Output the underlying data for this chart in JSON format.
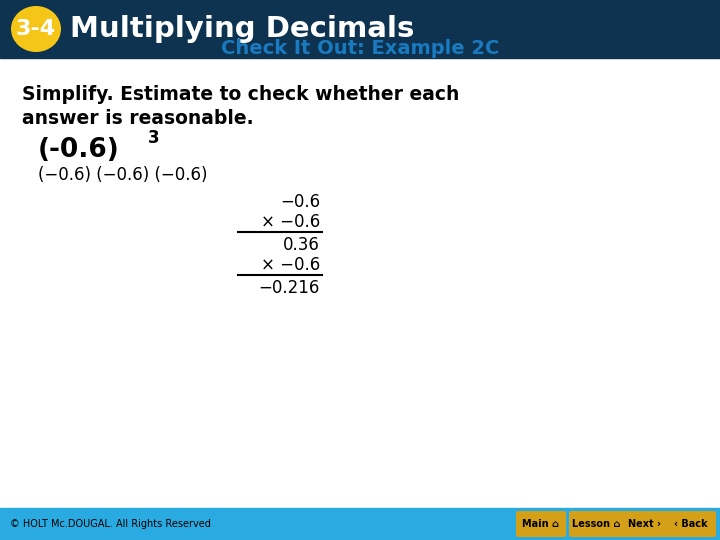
{
  "header_bg_color": "#0d3350",
  "header_text_color": "#ffffff",
  "header_badge_bg": "#f5c518",
  "header_badge_text": "3-4",
  "header_title": "Multiplying Decimals",
  "subtitle": "Check It Out: Example 2C",
  "subtitle_color": "#1a7abf",
  "body_bg_color": "#ffffff",
  "instruction_line1": "Simplify. Estimate to check whether each",
  "instruction_line2": "answer is reasonable.",
  "problem_base": "(-0.6)",
  "problem_exp": "3",
  "expand_line": "(−0.6) (−0.6) (−0.6)",
  "calc_line1": "−0.6",
  "calc_line2": "× −0.6",
  "calc_line3": "0.36",
  "calc_line4": "× −0.6",
  "calc_line5": "−0.216",
  "footer_bg_color": "#29abe2",
  "footer_text": "© HOLT Mc.DOUGAL. All Rights Reserved",
  "footer_text_color": "#000000",
  "button_bg": "#d4a017",
  "button_text_color": "#000000"
}
